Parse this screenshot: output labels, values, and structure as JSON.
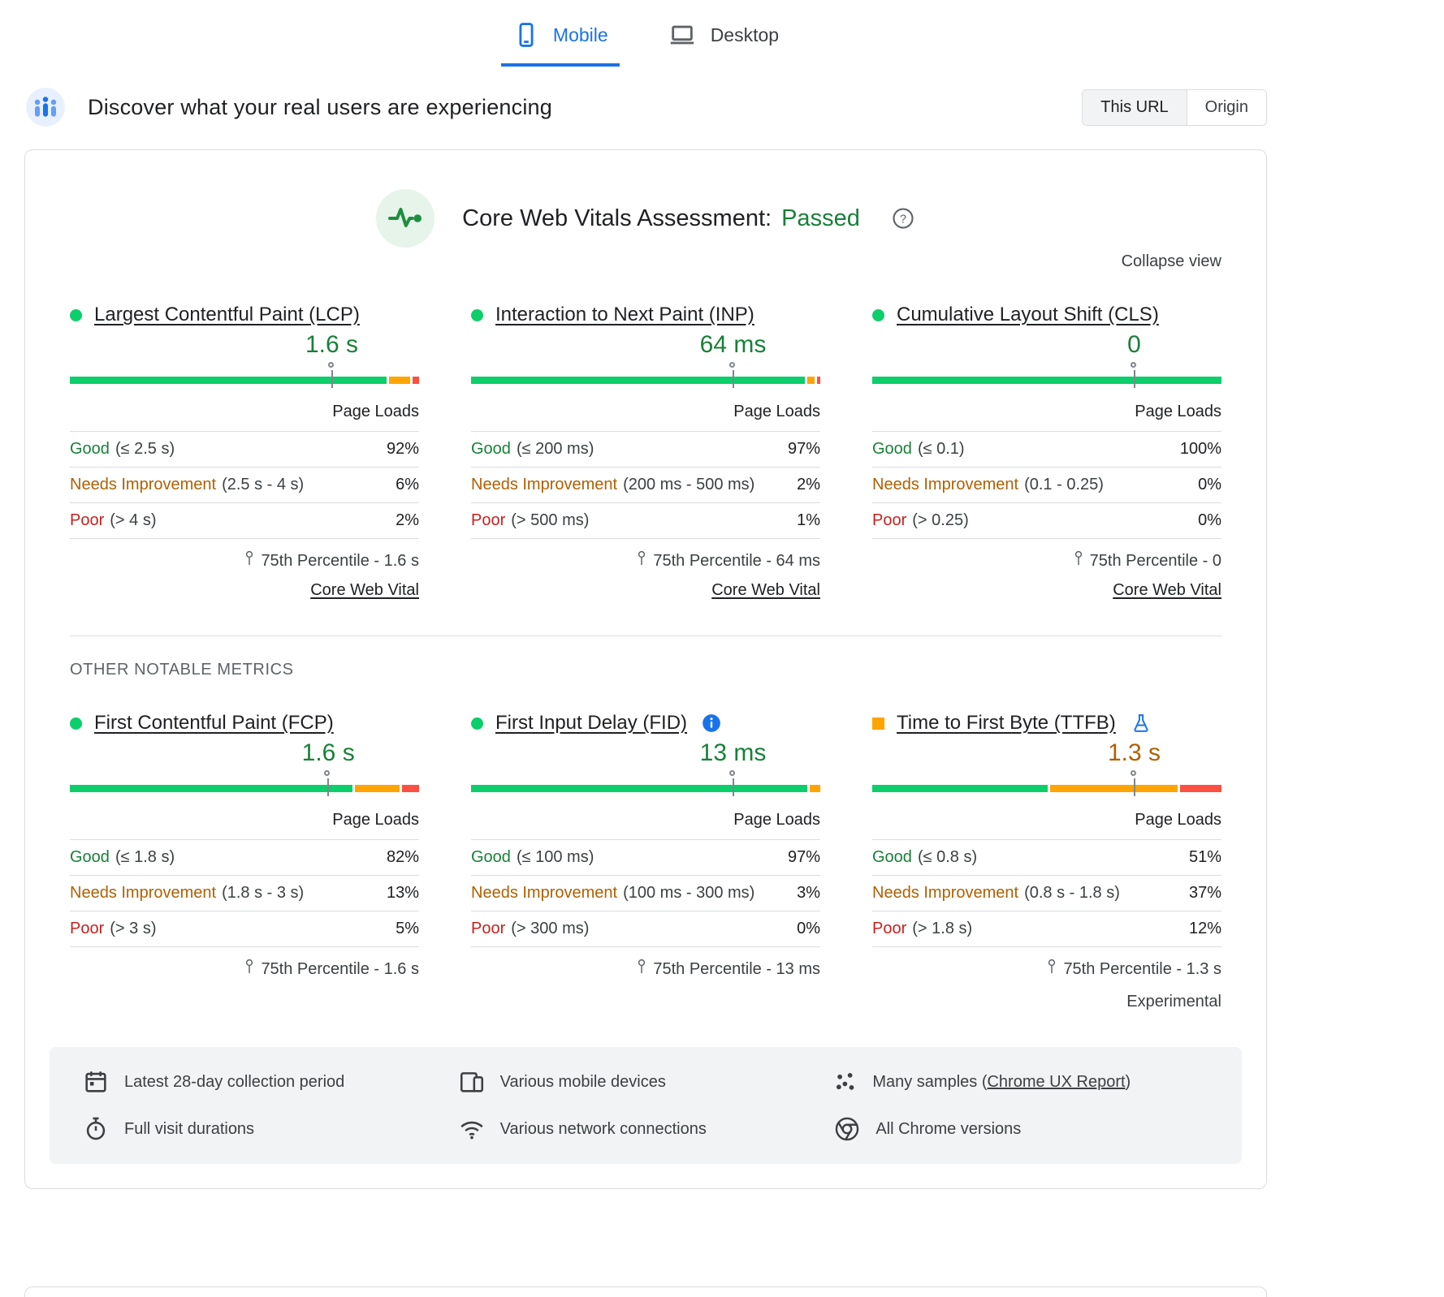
{
  "tabs": {
    "mobile": "Mobile",
    "desktop": "Desktop"
  },
  "header": {
    "title": "Discover what your real users are experiencing",
    "scope": {
      "this_url": "This URL",
      "origin": "Origin"
    }
  },
  "assessment": {
    "title": "Core Web Vitals Assessment:",
    "status": "Passed",
    "collapse_label": "Collapse view"
  },
  "section_label": "OTHER NOTABLE METRICS",
  "core_metrics": [
    {
      "name": "Largest Contentful Paint (LCP)",
      "value": "1.6 s",
      "value_color": "#188038",
      "indicator": "circle-good",
      "marker_pct": 75,
      "bar": [
        {
          "type": "good",
          "pct": 92
        },
        {
          "type": "ni",
          "pct": 6
        },
        {
          "type": "poor",
          "pct": 2
        }
      ],
      "page_loads_label": "Page Loads",
      "rows": [
        {
          "label": "Good",
          "range": "(≤ 2.5 s)",
          "value": "92%"
        },
        {
          "label": "Needs Improvement",
          "range": "(2.5 s - 4 s)",
          "value": "6%"
        },
        {
          "label": "Poor",
          "range": "(> 4 s)",
          "value": "2%"
        }
      ],
      "percentile": "75th Percentile - 1.6 s",
      "link": "Core Web Vital"
    },
    {
      "name": "Interaction to Next Paint (INP)",
      "value": "64 ms",
      "value_color": "#188038",
      "indicator": "circle-good",
      "marker_pct": 75,
      "bar": [
        {
          "type": "good",
          "pct": 97
        },
        {
          "type": "ni",
          "pct": 2
        },
        {
          "type": "poor",
          "pct": 1
        }
      ],
      "page_loads_label": "Page Loads",
      "rows": [
        {
          "label": "Good",
          "range": "(≤ 200 ms)",
          "value": "97%"
        },
        {
          "label": "Needs Improvement",
          "range": "(200 ms - 500 ms)",
          "value": "2%"
        },
        {
          "label": "Poor",
          "range": "(> 500 ms)",
          "value": "1%"
        }
      ],
      "percentile": "75th Percentile - 64 ms",
      "link": "Core Web Vital"
    },
    {
      "name": "Cumulative Layout Shift (CLS)",
      "value": "0",
      "value_color": "#188038",
      "indicator": "circle-good",
      "marker_pct": 75,
      "bar": [
        {
          "type": "good",
          "pct": 100
        },
        {
          "type": "ni",
          "pct": 0
        },
        {
          "type": "poor",
          "pct": 0
        }
      ],
      "page_loads_label": "Page Loads",
      "rows": [
        {
          "label": "Good",
          "range": "(≤ 0.1)",
          "value": "100%"
        },
        {
          "label": "Needs Improvement",
          "range": "(0.1 - 0.25)",
          "value": "0%"
        },
        {
          "label": "Poor",
          "range": "(> 0.25)",
          "value": "0%"
        }
      ],
      "percentile": "75th Percentile - 0",
      "link": "Core Web Vital"
    }
  ],
  "other_metrics": [
    {
      "name": "First Contentful Paint (FCP)",
      "value": "1.6 s",
      "value_color": "#188038",
      "indicator": "circle-good",
      "marker_pct": 74,
      "bar": [
        {
          "type": "good",
          "pct": 82
        },
        {
          "type": "ni",
          "pct": 13
        },
        {
          "type": "poor",
          "pct": 5
        }
      ],
      "page_loads_label": "Page Loads",
      "rows": [
        {
          "label": "Good",
          "range": "(≤ 1.8 s)",
          "value": "82%"
        },
        {
          "label": "Needs Improvement",
          "range": "(1.8 s - 3 s)",
          "value": "13%"
        },
        {
          "label": "Poor",
          "range": "(> 3 s)",
          "value": "5%"
        }
      ],
      "percentile": "75th Percentile - 1.6 s"
    },
    {
      "name": "First Input Delay (FID)",
      "value": "13 ms",
      "value_color": "#188038",
      "indicator": "circle-good",
      "has_info": true,
      "marker_pct": 75,
      "bar": [
        {
          "type": "good",
          "pct": 97
        },
        {
          "type": "ni",
          "pct": 3
        },
        {
          "type": "poor",
          "pct": 0
        }
      ],
      "page_loads_label": "Page Loads",
      "rows": [
        {
          "label": "Good",
          "range": "(≤ 100 ms)",
          "value": "97%"
        },
        {
          "label": "Needs Improvement",
          "range": "(100 ms - 300 ms)",
          "value": "3%"
        },
        {
          "label": "Poor",
          "range": "(> 300 ms)",
          "value": "0%"
        }
      ],
      "percentile": "75th Percentile - 13 ms"
    },
    {
      "name": "Time to First Byte (TTFB)",
      "value": "1.3 s",
      "value_color": "#b06000",
      "indicator": "square-ni",
      "has_flask": true,
      "marker_pct": 75,
      "bar": [
        {
          "type": "good",
          "pct": 51
        },
        {
          "type": "ni",
          "pct": 37
        },
        {
          "type": "poor",
          "pct": 12
        }
      ],
      "page_loads_label": "Page Loads",
      "rows": [
        {
          "label": "Good",
          "range": "(≤ 0.8 s)",
          "value": "51%"
        },
        {
          "label": "Needs Improvement",
          "range": "(0.8 s - 1.8 s)",
          "value": "37%"
        },
        {
          "label": "Poor",
          "range": "(> 1.8 s)",
          "value": "12%"
        }
      ],
      "percentile": "75th Percentile - 1.3 s",
      "experimental": "Experimental"
    }
  ],
  "footer": {
    "items": [
      {
        "text": "Latest 28-day collection period"
      },
      {
        "text": "Various mobile devices"
      },
      {
        "prefix": "Many samples (",
        "link": "Chrome UX Report",
        "suffix": ")"
      },
      {
        "text": "Full visit durations"
      },
      {
        "text": "Various network connections"
      },
      {
        "text": "All Chrome versions"
      }
    ]
  },
  "colors": {
    "good_bar": "#0cce6b",
    "ni_bar": "#ffa400",
    "poor_bar": "#ff4e42",
    "good_text": "#188038",
    "ni_text": "#b06000",
    "poor_text": "#c5221f",
    "accent": "#1a73e8"
  }
}
